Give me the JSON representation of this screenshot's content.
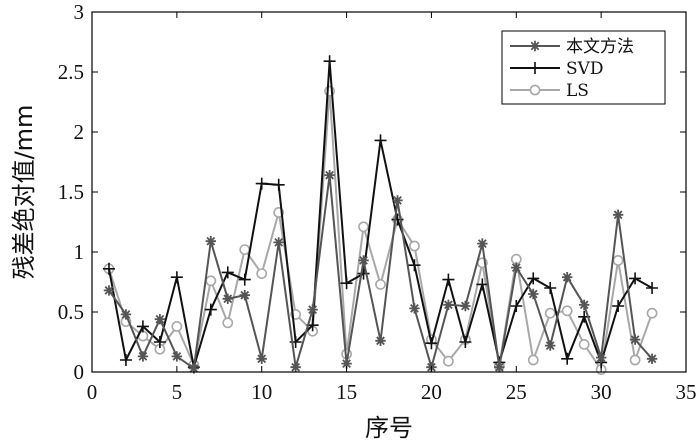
{
  "chart_data": {
    "type": "line",
    "xlabel": "序号",
    "ylabel": "残差绝对值/mm",
    "xlim": [
      0,
      35
    ],
    "ylim": [
      0,
      3
    ],
    "xticks": [
      0,
      5,
      10,
      15,
      20,
      25,
      30,
      35
    ],
    "yticks": [
      0,
      0.5,
      1,
      1.5,
      2,
      2.5,
      3
    ],
    "ytick_labels": [
      "0",
      "0.5",
      "1",
      "1.5",
      "2",
      "2.5",
      "3"
    ],
    "grid": false,
    "legend_position": "top-right",
    "x": [
      1,
      2,
      3,
      4,
      5,
      6,
      7,
      8,
      9,
      10,
      11,
      12,
      13,
      14,
      15,
      16,
      17,
      18,
      19,
      20,
      21,
      22,
      23,
      24,
      25,
      26,
      27,
      28,
      29,
      30,
      31,
      32,
      33
    ],
    "series": [
      {
        "name": "本文方法",
        "color": "#555555",
        "marker": "asterisk",
        "values": [
          0.68,
          0.48,
          0.13,
          0.44,
          0.13,
          0.03,
          1.09,
          0.61,
          0.64,
          0.11,
          1.08,
          0.04,
          0.52,
          1.64,
          0.07,
          0.93,
          0.26,
          1.43,
          0.53,
          0.04,
          0.56,
          0.55,
          1.07,
          0.04,
          0.87,
          0.65,
          0.22,
          0.79,
          0.56,
          0.12,
          1.31,
          0.27,
          0.11
        ]
      },
      {
        "name": "SVD",
        "color": "#111111",
        "marker": "plus",
        "values": [
          0.86,
          0.1,
          0.38,
          0.25,
          0.79,
          0.04,
          0.52,
          0.83,
          0.77,
          1.57,
          1.56,
          0.25,
          0.39,
          2.59,
          0.74,
          0.82,
          1.93,
          1.27,
          0.89,
          0.24,
          0.77,
          0.25,
          0.73,
          0.08,
          0.55,
          0.78,
          0.7,
          0.11,
          0.46,
          0.08,
          0.55,
          0.78,
          0.7
        ]
      },
      {
        "name": "LS",
        "color": "#a8a8a8",
        "marker": "circle",
        "values": [
          0.86,
          0.42,
          0.3,
          0.19,
          0.38,
          0.06,
          0.76,
          0.41,
          1.02,
          0.82,
          1.33,
          0.48,
          0.34,
          2.34,
          0.15,
          1.21,
          0.73,
          1.27,
          1.05,
          0.27,
          0.09,
          0.27,
          0.91,
          0.05,
          0.94,
          0.1,
          0.49,
          0.51,
          0.23,
          0.02,
          0.93,
          0.1,
          0.49
        ]
      }
    ]
  }
}
